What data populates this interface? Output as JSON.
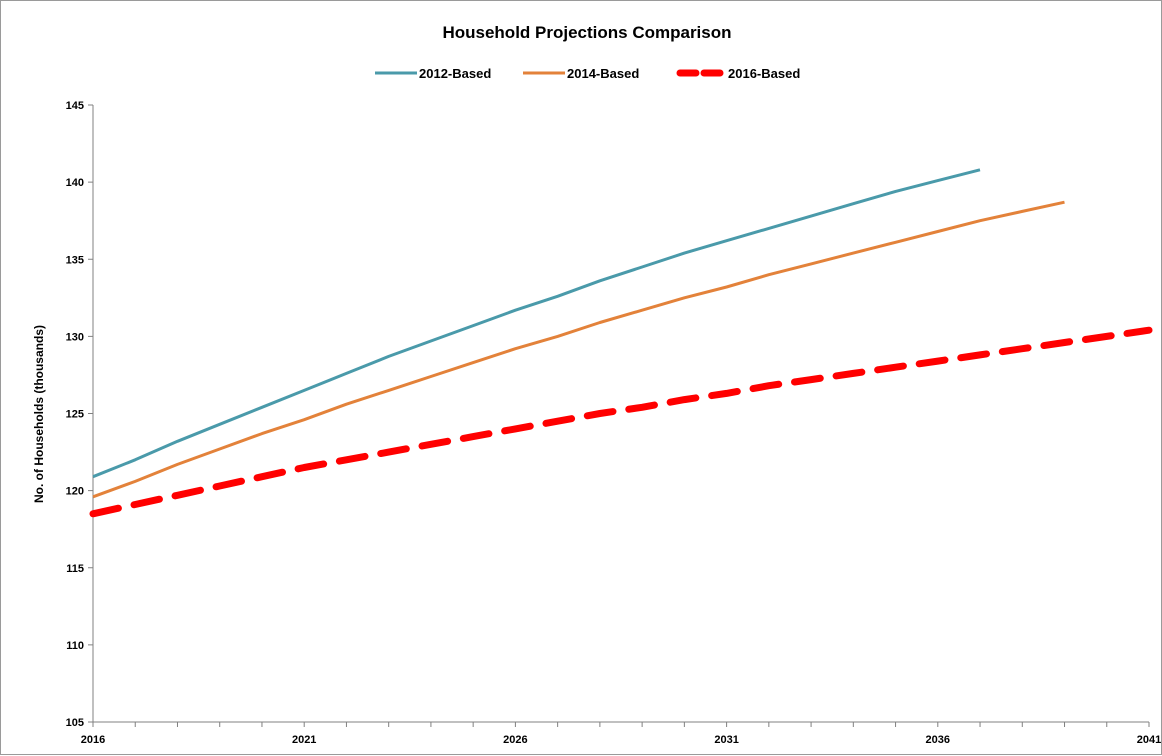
{
  "chart_data": {
    "type": "line",
    "title": "Household Projections Comparison",
    "xlabel": "",
    "ylabel": "No. of Households (thousands)",
    "ylim": [
      105,
      145
    ],
    "yticks": [
      105,
      110,
      115,
      120,
      125,
      130,
      135,
      140,
      145
    ],
    "xlim": [
      2016,
      2041
    ],
    "xticks": [
      2016,
      2021,
      2026,
      2031,
      2036,
      2041
    ],
    "grid": false,
    "legend_position": "top",
    "series": [
      {
        "name": "2012-Based",
        "color": "#4A9AAA",
        "style": "solid",
        "x": [
          2016,
          2017,
          2018,
          2019,
          2020,
          2021,
          2022,
          2023,
          2024,
          2025,
          2026,
          2027,
          2028,
          2029,
          2030,
          2031,
          2032,
          2033,
          2034,
          2035,
          2036,
          2037
        ],
        "values": [
          120.9,
          122.0,
          123.2,
          124.3,
          125.4,
          126.5,
          127.6,
          128.7,
          129.7,
          130.7,
          131.7,
          132.6,
          133.6,
          134.5,
          135.4,
          136.2,
          137.0,
          137.8,
          138.6,
          139.4,
          140.1,
          140.8
        ]
      },
      {
        "name": "2014-Based",
        "color": "#E3823A",
        "style": "solid",
        "x": [
          2016,
          2017,
          2018,
          2019,
          2020,
          2021,
          2022,
          2023,
          2024,
          2025,
          2026,
          2027,
          2028,
          2029,
          2030,
          2031,
          2032,
          2033,
          2034,
          2035,
          2036,
          2037,
          2038,
          2039
        ],
        "values": [
          119.6,
          120.6,
          121.7,
          122.7,
          123.7,
          124.6,
          125.6,
          126.5,
          127.4,
          128.3,
          129.2,
          130.0,
          130.9,
          131.7,
          132.5,
          133.2,
          134.0,
          134.7,
          135.4,
          136.1,
          136.8,
          137.5,
          138.1,
          138.7
        ]
      },
      {
        "name": "2016-Based",
        "color": "#FF0000",
        "style": "dashed",
        "x": [
          2016,
          2017,
          2018,
          2019,
          2020,
          2021,
          2022,
          2023,
          2024,
          2025,
          2026,
          2027,
          2028,
          2029,
          2030,
          2031,
          2032,
          2033,
          2034,
          2035,
          2036,
          2037,
          2038,
          2039,
          2040,
          2041
        ],
        "values": [
          118.5,
          119.1,
          119.7,
          120.3,
          120.9,
          121.5,
          122.0,
          122.5,
          123.0,
          123.5,
          124.0,
          124.5,
          125.0,
          125.4,
          125.9,
          126.3,
          126.8,
          127.2,
          127.6,
          128.0,
          128.4,
          128.8,
          129.2,
          129.6,
          130.0,
          130.4
        ]
      }
    ]
  }
}
